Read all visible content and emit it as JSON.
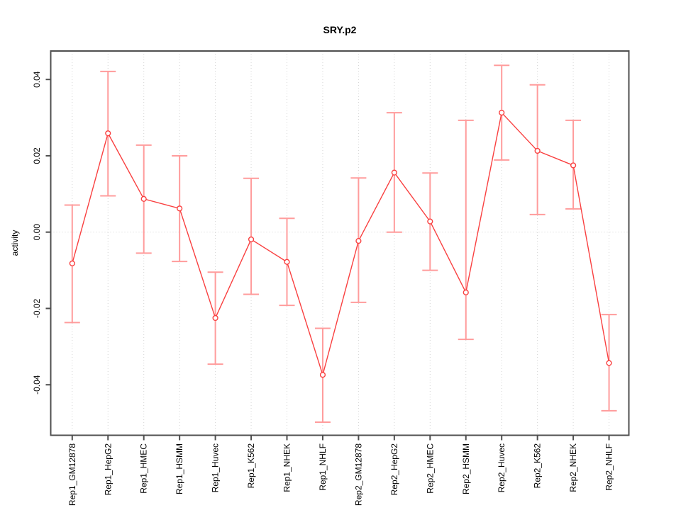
{
  "title": "SRY.p2",
  "chart_data": {
    "type": "line",
    "title": "SRY.p2",
    "xlabel": "",
    "ylabel": "activity",
    "categories": [
      "Rep1_GM12878",
      "Rep1_HepG2",
      "Rep1_HMEC",
      "Rep1_HSMM",
      "Rep1_Huvec",
      "Rep1_K562",
      "Rep1_NHEK",
      "Rep1_NHLF",
      "Rep2_GM12878",
      "Rep2_HepG2",
      "Rep2_HMEC",
      "Rep2_HSMM",
      "Rep2_Huvec",
      "Rep2_K562",
      "Rep2_NHEK",
      "Rep2_NHLF"
    ],
    "series": [
      {
        "name": "activity",
        "values": [
          -0.0082,
          0.0259,
          0.0087,
          0.0062,
          -0.0225,
          -0.0019,
          -0.0078,
          -0.0374,
          -0.0023,
          0.0156,
          0.0028,
          -0.0158,
          0.0313,
          0.0213,
          0.0175,
          -0.0343
        ],
        "lower": [
          -0.0237,
          0.0095,
          -0.0055,
          -0.0077,
          -0.0346,
          -0.0163,
          -0.0192,
          -0.0498,
          -0.0184,
          0.0,
          -0.01,
          -0.0281,
          0.0189,
          0.0046,
          0.0061,
          -0.0468
        ],
        "upper": [
          0.0071,
          0.0421,
          0.0228,
          0.02,
          -0.0105,
          0.0141,
          0.0036,
          -0.0252,
          0.0142,
          0.0313,
          0.0155,
          0.0293,
          0.0437,
          0.0386,
          0.0293,
          -0.0216
        ]
      }
    ],
    "yticks": [
      -0.04,
      -0.02,
      0.0,
      0.02,
      0.04
    ],
    "ytick_labels": [
      "-0.04",
      "-0.02",
      "0.00",
      "0.02",
      "0.04"
    ],
    "ylim": [
      -0.0532,
      0.0475
    ],
    "grid": {
      "vertical": "dotted at each category",
      "horizontal": "dotted at y=0"
    },
    "legend": "none",
    "marker": "open-circle",
    "colors": {
      "series": "#f94040",
      "error_bar": "#ff9c9c",
      "grid": "#d4d4d4",
      "axis": "#4f4f4f",
      "text": "#000000",
      "background": "#ffffff"
    }
  }
}
